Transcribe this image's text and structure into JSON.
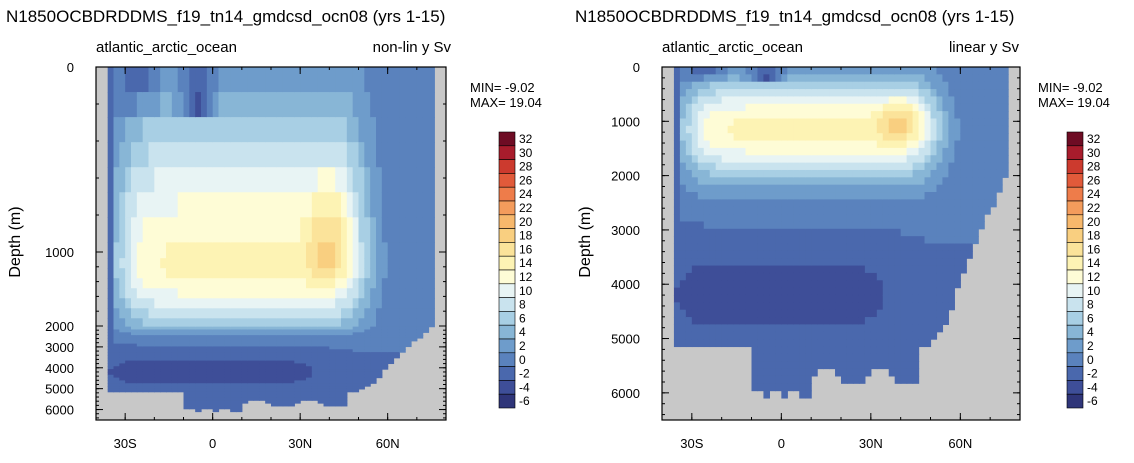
{
  "chart_data": [
    {
      "type": "heatmap",
      "title": "N1850OCBDRDDMS_f19_tn14_gmdcsd_ocn08 (yrs 1-15)",
      "left_label": "atlantic_arctic_ocean",
      "right_label": "non-lin y Sv",
      "ylabel": "Depth (m)",
      "yscale": "nonlinear",
      "xlim": [
        -40,
        80
      ],
      "ylim": [
        6500,
        0
      ],
      "xticks": [
        {
          "value": -30,
          "label": "30S"
        },
        {
          "value": 0,
          "label": "0"
        },
        {
          "value": 30,
          "label": "30N"
        },
        {
          "value": 60,
          "label": "60N"
        }
      ],
      "yticks": [
        {
          "value": 0,
          "label": "0"
        },
        {
          "value": 1000,
          "label": "1000"
        },
        {
          "value": 2000,
          "label": "2000"
        },
        {
          "value": 3000,
          "label": "3000"
        },
        {
          "value": 4000,
          "label": "4000"
        },
        {
          "value": 5000,
          "label": "5000"
        },
        {
          "value": 6000,
          "label": "6000"
        }
      ],
      "min_text": "MIN= -9.02",
      "max_text": "MAX= 19.04",
      "min": -9.02,
      "max": 19.04,
      "land_color": "#c8c8c8",
      "features": [
        {
          "kind": "max_cell",
          "lat": 40,
          "depth": 1000,
          "value": 19
        },
        {
          "kind": "min_cell",
          "lat": -5,
          "depth": 150,
          "value": -9
        }
      ]
    },
    {
      "type": "heatmap",
      "title": "N1850OCBDRDDMS_f19_tn14_gmdcsd_ocn08 (yrs 1-15)",
      "left_label": "atlantic_arctic_ocean",
      "right_label": "linear y Sv",
      "ylabel": "Depth (m)",
      "yscale": "linear",
      "xlim": [
        -40,
        80
      ],
      "ylim": [
        6500,
        0
      ],
      "xticks": [
        {
          "value": -30,
          "label": "30S"
        },
        {
          "value": 0,
          "label": "0"
        },
        {
          "value": 30,
          "label": "30N"
        },
        {
          "value": 60,
          "label": "60N"
        }
      ],
      "yticks": [
        {
          "value": 0,
          "label": "0"
        },
        {
          "value": 1000,
          "label": "1000"
        },
        {
          "value": 2000,
          "label": "2000"
        },
        {
          "value": 3000,
          "label": "3000"
        },
        {
          "value": 4000,
          "label": "4000"
        },
        {
          "value": 5000,
          "label": "5000"
        },
        {
          "value": 6000,
          "label": "6000"
        }
      ],
      "min_text": "MIN= -9.02",
      "max_text": "MAX= 19.04",
      "min": -9.02,
      "max": 19.04,
      "land_color": "#c8c8c8",
      "features": [
        {
          "kind": "max_cell",
          "lat": 40,
          "depth": 1000,
          "value": 19
        },
        {
          "kind": "min_cell",
          "lat": -5,
          "depth": 100,
          "value": -9
        }
      ]
    }
  ],
  "colorbar": {
    "levels": [
      "32",
      "30",
      "28",
      "26",
      "24",
      "22",
      "20",
      "18",
      "16",
      "14",
      "12",
      "10",
      "8",
      "6",
      "4",
      "2",
      "0",
      "-2",
      "-4",
      "-6"
    ],
    "colors": [
      "#6e0c24",
      "#a81c2c",
      "#cc3a2e",
      "#e15a3a",
      "#ee7c4a",
      "#f49c5c",
      "#f7b86c",
      "#f9cf80",
      "#fbe39a",
      "#fdf3b4",
      "#fefcd6",
      "#e8f4f4",
      "#c9e3ee",
      "#a8cfe4",
      "#88b6d6",
      "#6e9ccb",
      "#5a82bd",
      "#4a68ad",
      "#3e4e98",
      "#2f3579"
    ]
  }
}
